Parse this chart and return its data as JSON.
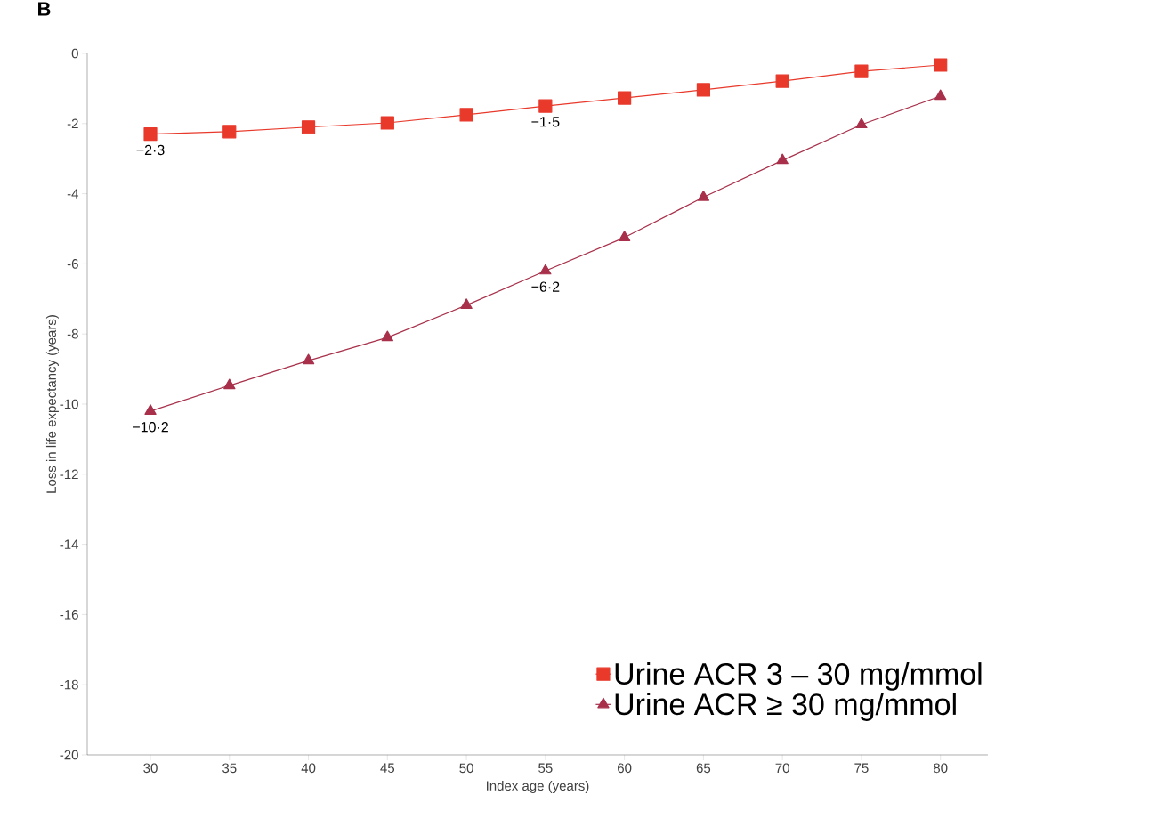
{
  "chart_data": {
    "type": "line",
    "title": "B",
    "xlabel": "Index age (years)",
    "ylabel": "Loss in life expectancy (years)",
    "x": [
      30,
      35,
      40,
      45,
      50,
      55,
      60,
      65,
      70,
      75,
      80
    ],
    "series": [
      {
        "name": "Urine ACR 3 – 30 mg/mmol",
        "color": "#e8392b",
        "marker": "square",
        "values": [
          -2.3,
          -2.23,
          -2.1,
          -1.98,
          -1.75,
          -1.5,
          -1.27,
          -1.04,
          -0.79,
          -0.51,
          -0.33
        ],
        "value_labels": [
          "−2·3",
          null,
          null,
          null,
          null,
          "−1·5",
          null,
          null,
          null,
          null,
          null
        ]
      },
      {
        "name": "Urine ACR ≥ 30 mg/mmol",
        "color": "#a8304a",
        "marker": "triangle",
        "values": [
          -10.2,
          -9.47,
          -8.76,
          -8.1,
          -7.18,
          -6.2,
          -5.25,
          -4.1,
          -3.05,
          -2.03,
          -1.22
        ],
        "value_labels": [
          "−10·2",
          null,
          null,
          null,
          null,
          "−6·2",
          null,
          null,
          null,
          null,
          null
        ]
      }
    ],
    "xlim": [
      26,
      83
    ],
    "ylim": [
      -20,
      0
    ],
    "xticks": [
      30,
      35,
      40,
      45,
      50,
      55,
      60,
      65,
      70,
      75,
      80
    ],
    "yticks": [
      -20,
      -18,
      -16,
      -14,
      -12,
      -10,
      -8,
      -6,
      -4,
      -2,
      0
    ],
    "grid": false,
    "legend": "bottom right",
    "line_style": "solid"
  }
}
